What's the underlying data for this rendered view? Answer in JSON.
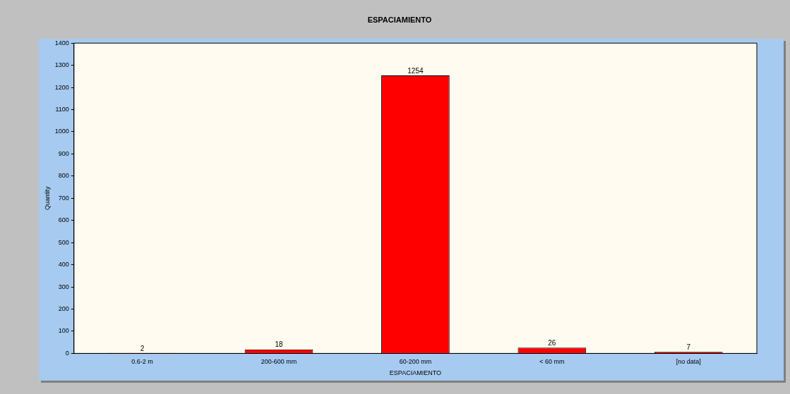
{
  "chart_data": {
    "type": "bar",
    "title": "ESPACIAMIENTO",
    "xlabel": "ESPACIAMIENTO",
    "ylabel": "Quantity",
    "categories": [
      "0.6-2 m",
      "200-600 mm",
      "60-200 mm",
      "< 60 mm",
      "[no data]"
    ],
    "values": [
      2,
      18,
      1254,
      26,
      7
    ],
    "color": "#ff0000",
    "ylim": [
      0,
      1400
    ],
    "yticks": [
      0,
      100,
      200,
      300,
      400,
      500,
      600,
      700,
      800,
      900,
      1000,
      1100,
      1200,
      1300,
      1400
    ],
    "data_labels": true,
    "grid": false,
    "legend": false
  }
}
